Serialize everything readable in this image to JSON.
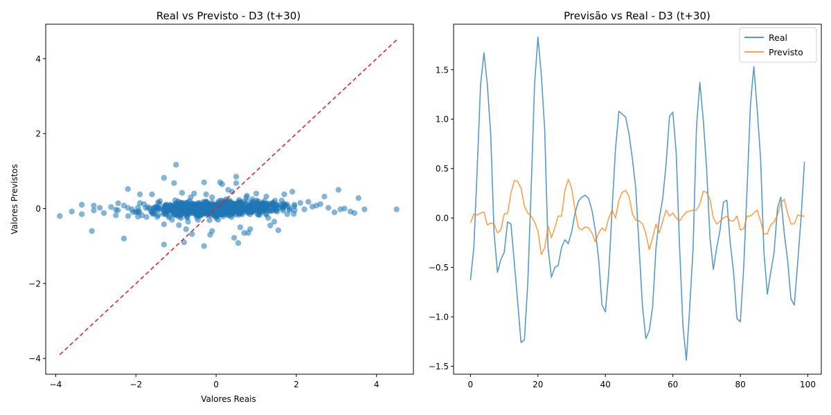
{
  "chart_data": [
    {
      "type": "scatter",
      "title": "Real vs Previsto - D3 (t+30)",
      "xlabel": "Valores Reais",
      "ylabel": "Valores Previstos",
      "xlim": [
        -4.25,
        4.92
      ],
      "ylim": [
        -4.42,
        4.92
      ],
      "xticks": [
        -4,
        -2,
        0,
        2,
        4
      ],
      "yticks": [
        -4,
        -2,
        0,
        2,
        4
      ],
      "tick_labels_x": [
        "−4",
        "−2",
        "0",
        "2",
        "4"
      ],
      "tick_labels_y": [
        "−4",
        "−2",
        "0",
        "2",
        "4"
      ],
      "grid": false,
      "colors": {
        "points": "#1f77b4",
        "reference": "#d62728"
      },
      "reference_line": {
        "style": "dashed",
        "from": [
          -3.9,
          -3.9
        ],
        "to": [
          4.5,
          4.5
        ]
      },
      "points": [
        [
          -3.9,
          -0.2
        ],
        [
          -3.6,
          -0.08
        ],
        [
          -3.35,
          0.1
        ],
        [
          -3.35,
          -0.15
        ],
        [
          -3.1,
          -0.6
        ],
        [
          -3.05,
          0.08
        ],
        [
          -3.05,
          -0.05
        ],
        [
          -2.9,
          0.02
        ],
        [
          -2.8,
          -0.12
        ],
        [
          -2.5,
          -0.18
        ],
        [
          -2.5,
          -0.03
        ],
        [
          -2.3,
          -0.8
        ],
        [
          -2.3,
          0.08
        ],
        [
          -2.2,
          0.52
        ],
        [
          -2.2,
          0.02
        ],
        [
          -2.1,
          -0.02
        ],
        [
          -2.0,
          -0.1
        ],
        [
          -1.9,
          0.38
        ],
        [
          -1.9,
          0.15
        ],
        [
          -1.85,
          -0.18
        ],
        [
          -1.8,
          0.12
        ],
        [
          -1.7,
          0.04
        ],
        [
          -1.6,
          0.38
        ],
        [
          -1.5,
          0.05
        ],
        [
          -1.4,
          0.2
        ],
        [
          -1.3,
          0.82
        ],
        [
          -1.3,
          -0.96
        ],
        [
          -1.3,
          -0.42
        ],
        [
          -1.2,
          0.05
        ],
        [
          -1.1,
          -0.3
        ],
        [
          -1.05,
          0.68
        ],
        [
          -1.0,
          1.17
        ],
        [
          -1.0,
          0.12
        ],
        [
          -0.9,
          -0.2
        ],
        [
          -0.85,
          0.42
        ],
        [
          -0.8,
          -0.9
        ],
        [
          -0.75,
          -0.55
        ],
        [
          -0.7,
          -0.35
        ],
        [
          -0.6,
          -0.68
        ],
        [
          -0.55,
          0.4
        ],
        [
          -0.4,
          -0.2
        ],
        [
          -0.3,
          -1.0
        ],
        [
          -0.3,
          0.7
        ],
        [
          -0.25,
          0.38
        ],
        [
          -0.15,
          -0.7
        ],
        [
          -0.1,
          -0.6
        ],
        [
          0.0,
          -0.2
        ],
        [
          0.1,
          0.7
        ],
        [
          0.15,
          0.65
        ],
        [
          0.2,
          -0.15
        ],
        [
          0.3,
          0.5
        ],
        [
          0.35,
          0.1
        ],
        [
          0.4,
          0.45
        ],
        [
          0.45,
          -0.78
        ],
        [
          0.5,
          0.68
        ],
        [
          0.5,
          0.85
        ],
        [
          0.55,
          -0.92
        ],
        [
          0.6,
          -0.5
        ],
        [
          0.65,
          0.08
        ],
        [
          0.7,
          -0.65
        ],
        [
          0.8,
          -0.65
        ],
        [
          0.85,
          -0.55
        ],
        [
          0.9,
          0.25
        ],
        [
          1.0,
          0.4
        ],
        [
          1.1,
          -0.1
        ],
        [
          1.2,
          0.2
        ],
        [
          1.3,
          -0.25
        ],
        [
          1.35,
          -0.45
        ],
        [
          1.4,
          0.15
        ],
        [
          1.45,
          -0.35
        ],
        [
          1.5,
          -0.05
        ],
        [
          1.55,
          -0.58
        ],
        [
          1.6,
          0.1
        ],
        [
          1.7,
          0.38
        ],
        [
          1.8,
          0.05
        ],
        [
          1.9,
          0.45
        ],
        [
          1.95,
          0.1
        ],
        [
          2.1,
          0.15
        ],
        [
          2.2,
          -0.02
        ],
        [
          2.3,
          0.18
        ],
        [
          2.4,
          0.05
        ],
        [
          2.5,
          0.08
        ],
        [
          2.6,
          0.12
        ],
        [
          2.7,
          0.32
        ],
        [
          2.8,
          0.02
        ],
        [
          2.95,
          -0.1
        ],
        [
          3.05,
          0.5
        ],
        [
          3.1,
          -0.02
        ],
        [
          3.2,
          0.0
        ],
        [
          3.35,
          -0.08
        ],
        [
          3.45,
          -0.12
        ],
        [
          3.55,
          0.28
        ],
        [
          3.7,
          -0.02
        ],
        [
          4.5,
          -0.02
        ],
        [
          -0.5,
          0.1
        ],
        [
          -0.2,
          0.05
        ],
        [
          0.2,
          0.0
        ],
        [
          0.6,
          0.15
        ],
        [
          -0.7,
          0.0
        ],
        [
          0.9,
          -0.1
        ],
        [
          -1.6,
          -0.1
        ],
        [
          -1.15,
          0.1
        ],
        [
          1.25,
          0.05
        ],
        [
          -0.1,
          0.3
        ],
        [
          0.05,
          -0.3
        ],
        [
          0.75,
          0.3
        ],
        [
          -0.45,
          -0.3
        ],
        [
          1.05,
          0.2
        ],
        [
          -1.25,
          -0.15
        ],
        [
          0.25,
          0.25
        ]
      ]
    },
    {
      "type": "line",
      "title": "Previsão vs Real - D3 (t+30)",
      "xlim": [
        -5,
        104
      ],
      "ylim": [
        -1.58,
        1.96
      ],
      "xticks": [
        0,
        20,
        40,
        60,
        80,
        100
      ],
      "yticks": [
        -1.5,
        -1.0,
        -0.5,
        0.0,
        0.5,
        1.0,
        1.5
      ],
      "tick_labels_x": [
        "0",
        "20",
        "40",
        "60",
        "80",
        "100"
      ],
      "tick_labels_y": [
        "−1.5",
        "−1.0",
        "−0.5",
        "0.0",
        "0.5",
        "1.0",
        "1.5"
      ],
      "grid": false,
      "legend": {
        "placement": "top-right"
      },
      "series": [
        {
          "name": "Real",
          "color": "#1f77b4",
          "values": [
            -0.63,
            -0.3,
            0.5,
            1.35,
            1.67,
            1.35,
            0.85,
            -0.15,
            -0.55,
            -0.42,
            -0.35,
            -0.04,
            -0.06,
            -0.45,
            -0.85,
            -1.26,
            -1.23,
            -0.65,
            0.3,
            1.35,
            1.83,
            1.45,
            0.9,
            -0.3,
            -0.6,
            -0.5,
            -0.48,
            -0.3,
            -0.22,
            -0.26,
            -0.14,
            0.05,
            0.17,
            0.21,
            0.23,
            0.2,
            0.08,
            -0.12,
            -0.42,
            -0.88,
            -0.95,
            -0.55,
            0.1,
            0.7,
            1.08,
            1.05,
            1.02,
            0.85,
            0.6,
            0.3,
            -0.3,
            -0.9,
            -1.22,
            -1.14,
            -0.9,
            -0.3,
            0.0,
            0.2,
            0.55,
            1.03,
            1.07,
            0.65,
            -0.3,
            -1.1,
            -1.44,
            -0.9,
            -0.3,
            0.92,
            1.37,
            1.0,
            0.5,
            -0.2,
            -0.52,
            -0.3,
            -0.12,
            0.16,
            0.18,
            -0.25,
            -0.55,
            -1.02,
            -1.05,
            -0.5,
            0.3,
            1.15,
            1.53,
            1.1,
            0.6,
            -0.35,
            -0.77,
            -0.55,
            -0.35,
            0.1,
            0.21,
            -0.15,
            -0.42,
            -0.82,
            -0.88,
            -0.45,
            0.0,
            0.57
          ]
        },
        {
          "name": "Previsto",
          "color": "#ff7f0e",
          "values": [
            -0.05,
            0.04,
            0.03,
            0.05,
            0.06,
            -0.07,
            -0.05,
            -0.06,
            -0.15,
            -0.12,
            0.04,
            0.05,
            0.25,
            0.38,
            0.37,
            0.3,
            0.12,
            0.05,
            0.02,
            -0.04,
            -0.13,
            -0.37,
            -0.3,
            -0.08,
            -0.2,
            -0.1,
            0.02,
            0.02,
            0.28,
            0.39,
            0.3,
            0.08,
            -0.1,
            -0.12,
            -0.09,
            -0.1,
            -0.15,
            -0.24,
            -0.15,
            -0.1,
            -0.13,
            0.0,
            0.08,
            0.0,
            0.18,
            0.26,
            0.28,
            0.22,
            0.04,
            -0.02,
            -0.03,
            -0.06,
            -0.16,
            -0.32,
            -0.2,
            -0.06,
            -0.15,
            -0.03,
            0.08,
            0.02,
            0.05,
            0.0,
            -0.03,
            0.02,
            0.06,
            0.07,
            0.08,
            0.08,
            0.14,
            0.27,
            0.26,
            0.19,
            0.0,
            -0.06,
            -0.03,
            0.0,
            0.02,
            -0.03,
            -0.03,
            0.02,
            -0.12,
            -0.11,
            0.02,
            0.02,
            0.05,
            0.08,
            -0.03,
            -0.16,
            -0.16,
            -0.07,
            -0.04,
            0.03,
            0.15,
            0.19,
            0.05,
            -0.06,
            -0.06,
            0.03,
            0.02,
            0.02
          ]
        }
      ]
    }
  ]
}
